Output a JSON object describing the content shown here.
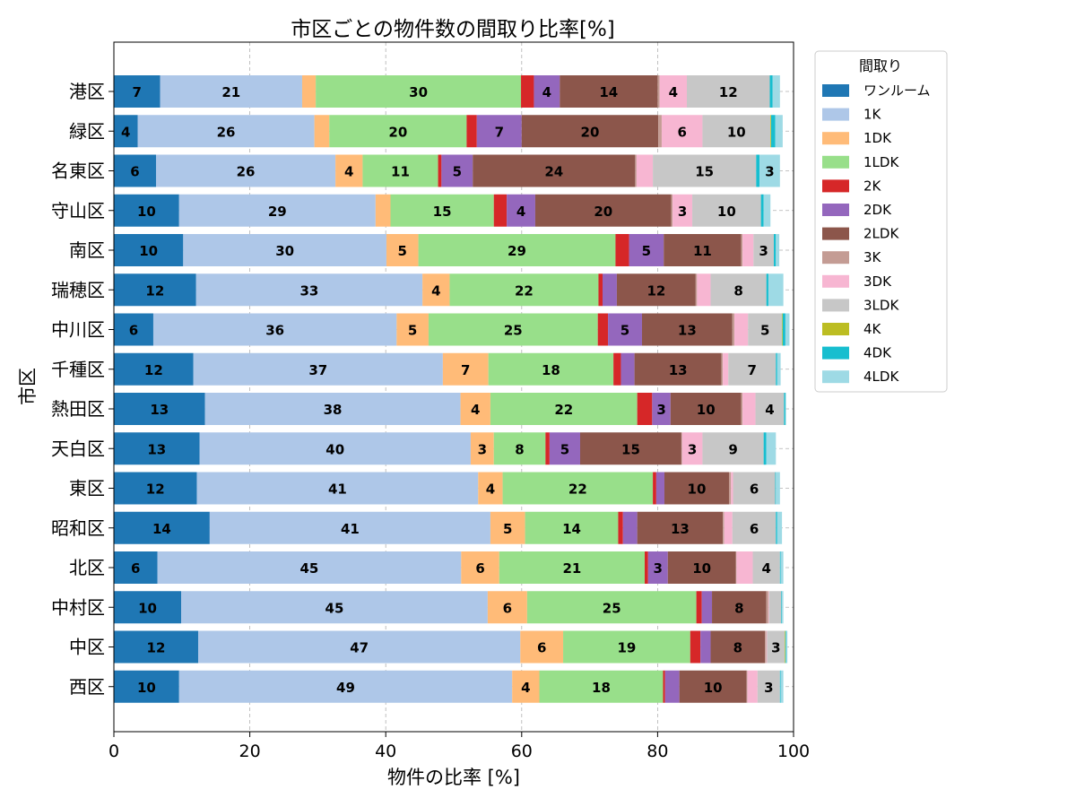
{
  "chart_data": {
    "type": "bar",
    "orientation": "horizontal",
    "stacked": true,
    "title": "市区ごとの物件数の間取り比率[%]",
    "xlabel": "物件の比率 [%]",
    "ylabel": "市区",
    "xlim": [
      0,
      100
    ],
    "x_ticks": [
      "0",
      "20",
      "40",
      "60",
      "80",
      "100"
    ],
    "grid": true,
    "legend_title": "間取り",
    "legend_placement": "outside-upper-right",
    "categories": [
      "港区",
      "緑区",
      "名東区",
      "守山区",
      "南区",
      "瑞穂区",
      "中川区",
      "千種区",
      "熱田区",
      "天白区",
      "東区",
      "昭和区",
      "北区",
      "中村区",
      "中区",
      "西区"
    ],
    "series": [
      {
        "name": "ワンルーム",
        "color": "#1f77b4",
        "values": [
          6.8,
          3.5,
          6.2,
          9.6,
          10.2,
          12.1,
          5.8,
          11.7,
          13.4,
          12.6,
          12.2,
          14.1,
          6.4,
          9.9,
          12.4,
          9.6
        ]
      },
      {
        "name": "1K",
        "color": "#aec7e8",
        "values": [
          20.9,
          26.0,
          26.4,
          28.9,
          29.9,
          33.3,
          35.8,
          36.7,
          37.6,
          39.9,
          41.4,
          41.3,
          44.7,
          45.1,
          47.4,
          49.0
        ]
      },
      {
        "name": "1DK",
        "color": "#ffbb78",
        "values": [
          2.0,
          2.2,
          4.0,
          2.2,
          4.7,
          4.0,
          4.7,
          6.7,
          4.4,
          3.4,
          3.6,
          5.1,
          5.6,
          5.8,
          6.3,
          4.0
        ]
      },
      {
        "name": "1LDK",
        "color": "#98df8a",
        "values": [
          30.2,
          20.2,
          11.1,
          15.2,
          29.0,
          21.9,
          24.9,
          18.4,
          21.6,
          7.6,
          22.1,
          13.7,
          21.4,
          24.9,
          18.7,
          18.2
        ]
      },
      {
        "name": "2K",
        "color": "#d62728",
        "values": [
          1.9,
          1.5,
          0.5,
          1.9,
          2.0,
          0.6,
          1.5,
          1.1,
          2.2,
          0.6,
          0.5,
          0.7,
          0.5,
          0.8,
          1.5,
          0.3
        ]
      },
      {
        "name": "2DK",
        "color": "#9467bd",
        "values": [
          3.8,
          6.6,
          4.6,
          4.2,
          5.1,
          2.1,
          5.0,
          2.0,
          2.7,
          4.5,
          1.2,
          2.1,
          2.9,
          1.5,
          1.5,
          2.1
        ]
      },
      {
        "name": "2LDK",
        "color": "#8c564b",
        "values": [
          14.4,
          20.1,
          23.9,
          20.0,
          11.4,
          11.6,
          13.3,
          12.8,
          10.4,
          14.9,
          9.5,
          12.6,
          10.0,
          8.0,
          8.0,
          9.9
        ]
      },
      {
        "name": "3K",
        "color": "#c49c94",
        "values": [
          0.3,
          0.5,
          0.2,
          0.2,
          0.2,
          0.2,
          0.3,
          0.2,
          0.2,
          0.1,
          0.3,
          0.2,
          0.1,
          0.3,
          0.2,
          0.1
        ]
      },
      {
        "name": "3DK",
        "color": "#f7b6d2",
        "values": [
          4.0,
          6.0,
          2.4,
          2.9,
          1.6,
          2.0,
          2.0,
          0.8,
          1.9,
          3.0,
          0.3,
          1.2,
          2.4,
          0.1,
          0.1,
          1.5
        ]
      },
      {
        "name": "3LDK",
        "color": "#c7c7c7",
        "values": [
          12.2,
          10.0,
          15.2,
          10.1,
          3.0,
          8.2,
          5.0,
          7.0,
          4.2,
          9.0,
          6.2,
          6.4,
          4.0,
          1.8,
          2.6,
          3.3
        ]
      },
      {
        "name": "4K",
        "color": "#bcbd22",
        "values": [
          0.0,
          0.1,
          0.0,
          0.0,
          0.0,
          0.0,
          0.1,
          0.0,
          0.0,
          0.0,
          0.0,
          0.0,
          0.0,
          0.0,
          0.1,
          0.0
        ]
      },
      {
        "name": "4DK",
        "color": "#17becf",
        "values": [
          0.4,
          0.6,
          0.5,
          0.4,
          0.3,
          0.3,
          0.4,
          0.2,
          0.2,
          0.4,
          0.1,
          0.2,
          0.1,
          0.1,
          0.1,
          0.1
        ]
      },
      {
        "name": "4LDK",
        "color": "#9edae5",
        "values": [
          1.1,
          1.1,
          3.0,
          1.0,
          0.5,
          2.2,
          0.6,
          0.5,
          0.1,
          1.4,
          0.6,
          0.7,
          0.4,
          0.2,
          0.2,
          0.4
        ]
      }
    ]
  }
}
